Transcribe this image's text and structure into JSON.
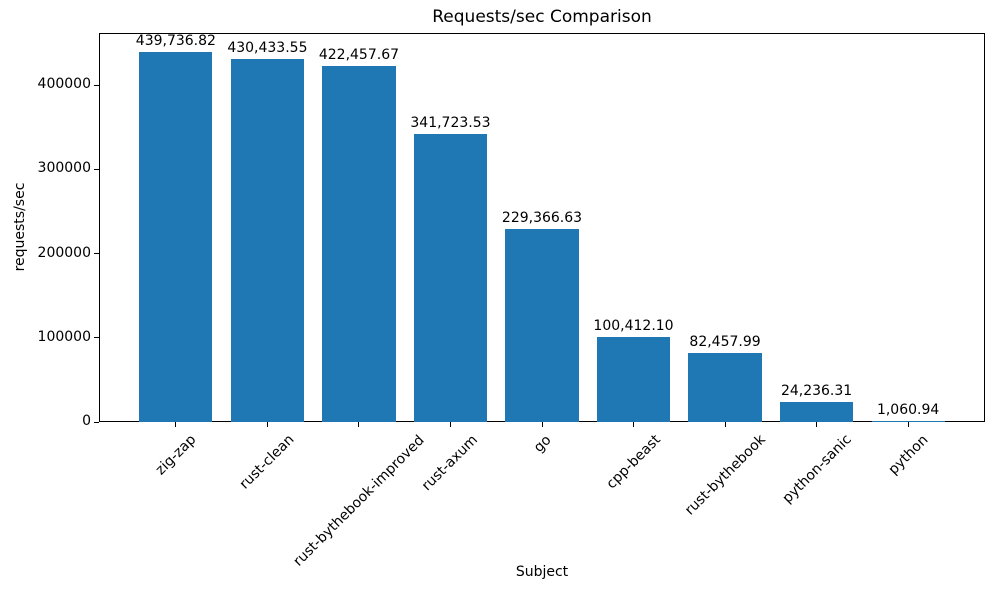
{
  "chart_data": {
    "type": "bar",
    "title": "Requests/sec Comparison",
    "xlabel": "Subject",
    "ylabel": "requests/sec",
    "categories": [
      "zig-zap",
      "rust-clean",
      "rust-bythebook-improved",
      "rust-axum",
      "go",
      "cpp-beast",
      "rust-bythebook",
      "python-sanic",
      "python"
    ],
    "values": [
      439736.82,
      430433.55,
      422457.67,
      341723.53,
      229366.63,
      100412.1,
      82457.99,
      24236.31,
      1060.94
    ],
    "value_labels": [
      "439,736.82",
      "430,433.55",
      "422,457.67",
      "341,723.53",
      "229,366.63",
      "100,412.10",
      "82,457.99",
      "24,236.31",
      "1,060.94"
    ],
    "yticks": [
      0,
      100000,
      200000,
      300000,
      400000
    ],
    "ytick_labels": [
      "0",
      "100000",
      "200000",
      "300000",
      "400000"
    ],
    "ylim": [
      0,
      461723.66
    ],
    "bar_color": "#1f77b4",
    "grid": false,
    "legend": null
  }
}
